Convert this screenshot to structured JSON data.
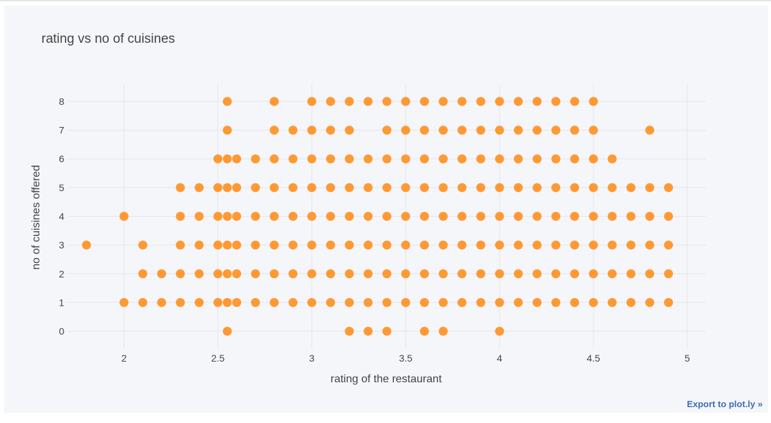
{
  "export_link": "Export to plot.ly »",
  "chart_data": {
    "type": "scatter",
    "title": "rating vs no of cuisines",
    "xlabel": "rating of the restaurant",
    "ylabel": "no of cuisines offered",
    "xlim": [
      1.7,
      5.1
    ],
    "ylim": [
      -0.6,
      8.6
    ],
    "xticks": [
      2,
      2.5,
      3,
      3.5,
      4,
      4.5,
      5
    ],
    "xtick_labels": [
      "2",
      "2.5",
      "3",
      "3.5",
      "4",
      "4.5",
      "5"
    ],
    "yticks": [
      0,
      1,
      2,
      3,
      4,
      5,
      6,
      7,
      8
    ],
    "grid": true,
    "marker_color": "#ff9933",
    "rating_levels": [
      1.8,
      2.0,
      2.1,
      2.2,
      2.3,
      2.4,
      2.5,
      2.55,
      2.6,
      2.7,
      2.8,
      2.9,
      3.0,
      3.1,
      3.2,
      3.3,
      3.4,
      3.5,
      3.6,
      3.7,
      3.8,
      3.9,
      4.0,
      4.1,
      4.2,
      4.3,
      4.4,
      4.5,
      4.6,
      4.7,
      4.8,
      4.9
    ],
    "cuisine_count_by_rating": {
      "8": [
        2.55,
        2.8,
        3.0,
        3.1,
        3.2,
        3.3,
        3.4,
        3.5,
        3.6,
        3.7,
        3.8,
        3.9,
        4.0,
        4.1,
        4.2,
        4.3,
        4.4,
        4.5
      ],
      "7": [
        2.55,
        2.8,
        2.9,
        3.0,
        3.1,
        3.2,
        3.4,
        3.5,
        3.6,
        3.7,
        3.8,
        3.9,
        4.0,
        4.1,
        4.2,
        4.3,
        4.4,
        4.5,
        4.8
      ],
      "6": [
        2.5,
        2.55,
        2.6,
        2.7,
        2.8,
        2.9,
        3.0,
        3.1,
        3.2,
        3.3,
        3.4,
        3.5,
        3.6,
        3.7,
        3.8,
        3.9,
        4.0,
        4.1,
        4.2,
        4.3,
        4.4,
        4.5,
        4.6
      ],
      "5": [
        2.3,
        2.4,
        2.5,
        2.55,
        2.6,
        2.7,
        2.8,
        2.9,
        3.0,
        3.1,
        3.2,
        3.3,
        3.4,
        3.5,
        3.6,
        3.7,
        3.8,
        3.9,
        4.0,
        4.1,
        4.2,
        4.3,
        4.4,
        4.5,
        4.6,
        4.7,
        4.8,
        4.9
      ],
      "4": [
        2.0,
        2.3,
        2.4,
        2.5,
        2.55,
        2.6,
        2.7,
        2.8,
        2.9,
        3.0,
        3.1,
        3.2,
        3.3,
        3.4,
        3.5,
        3.6,
        3.7,
        3.8,
        3.9,
        4.0,
        4.1,
        4.2,
        4.3,
        4.4,
        4.5,
        4.6,
        4.7,
        4.8,
        4.9
      ],
      "3": [
        1.8,
        2.1,
        2.3,
        2.4,
        2.5,
        2.55,
        2.6,
        2.7,
        2.8,
        2.9,
        3.0,
        3.1,
        3.2,
        3.3,
        3.4,
        3.5,
        3.6,
        3.7,
        3.8,
        3.9,
        4.0,
        4.1,
        4.2,
        4.3,
        4.4,
        4.5,
        4.6,
        4.7,
        4.8,
        4.9
      ],
      "2": [
        2.1,
        2.2,
        2.3,
        2.4,
        2.5,
        2.55,
        2.6,
        2.7,
        2.8,
        2.9,
        3.0,
        3.1,
        3.2,
        3.3,
        3.4,
        3.5,
        3.6,
        3.7,
        3.8,
        3.9,
        4.0,
        4.1,
        4.2,
        4.3,
        4.4,
        4.5,
        4.6,
        4.7,
        4.8,
        4.9
      ],
      "1": [
        2.0,
        2.1,
        2.2,
        2.3,
        2.4,
        2.5,
        2.55,
        2.6,
        2.7,
        2.8,
        2.9,
        3.0,
        3.1,
        3.2,
        3.3,
        3.4,
        3.5,
        3.6,
        3.7,
        3.8,
        3.9,
        4.0,
        4.1,
        4.2,
        4.3,
        4.4,
        4.5,
        4.6,
        4.7,
        4.8,
        4.9
      ],
      "0": [
        2.55,
        3.2,
        3.3,
        3.4,
        3.6,
        3.7,
        4.0
      ]
    }
  }
}
